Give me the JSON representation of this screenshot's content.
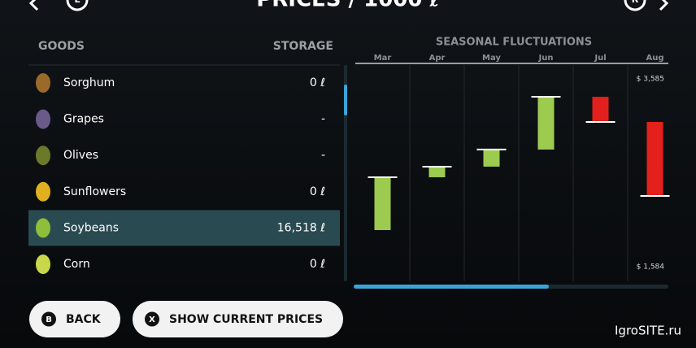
{
  "header": {
    "title": "PRICES / 1000 ℓ",
    "left_button": "L",
    "right_button": "R"
  },
  "table": {
    "columns": [
      "GOODS",
      "STORAGE"
    ],
    "rows": [
      [
        "Sorghum",
        "0 ℓ"
      ],
      [
        "Grapes",
        "-"
      ],
      [
        "Olives",
        "-"
      ],
      [
        "Sunflowers",
        "0 ℓ"
      ],
      [
        "Soybeans",
        "16,518 ℓ"
      ],
      [
        "Corn",
        "0 ℓ"
      ]
    ],
    "selected": 4
  },
  "chart_data": {
    "type": "waterfall",
    "title": "SEASONAL FLUCTUATIONS",
    "categories": [
      "Mar",
      "Apr",
      "May",
      "Jun",
      "Jul",
      "Aug"
    ],
    "start": [
      1974,
      2537,
      2650,
      2832,
      3394,
      3126
    ],
    "end": [
      2537,
      2650,
      2832,
      3394,
      3126,
      2338
    ],
    "ylim": [
      1584,
      3585
    ],
    "yticks": [
      {
        "value": 3585,
        "label": "$ 3,585"
      },
      {
        "value": 1584,
        "label": "$ 1,584"
      }
    ],
    "colors": {
      "up": "#9dcb4f",
      "down": "#e3201b"
    }
  },
  "buttons": [
    {
      "icon": "B",
      "label": "BACK"
    },
    {
      "icon": "X",
      "label": "SHOW CURRENT PRICES"
    }
  ],
  "watermark": "IgroSITE.ru"
}
